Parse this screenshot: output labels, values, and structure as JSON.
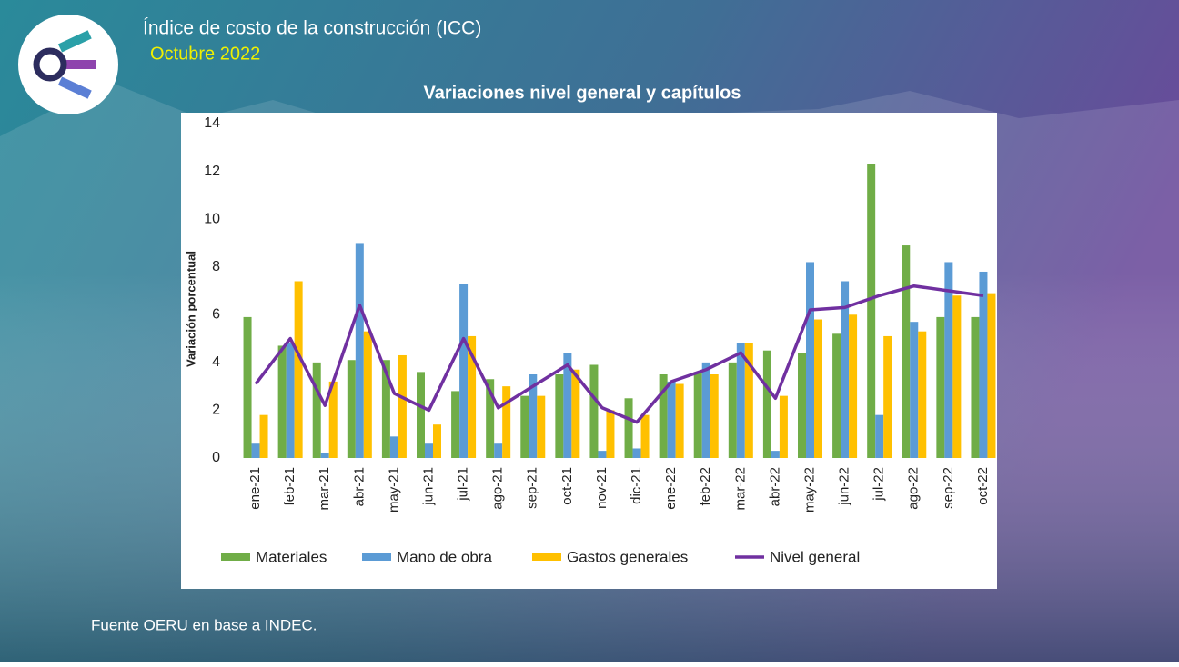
{
  "header": {
    "title": "Índice de costo de la construcción (ICC)",
    "subtitle": "Octubre 2022",
    "source": "Fuente OERU en base a INDEC."
  },
  "chart_data": {
    "type": "bar",
    "title": "Variaciones nivel general y capítulos",
    "y_label": "Variación porcentual",
    "categories": [
      "ene-21",
      "feb-21",
      "mar-21",
      "abr-21",
      "may-21",
      "jun-21",
      "jul-21",
      "ago-21",
      "sep-21",
      "oct-21",
      "nov-21",
      "dic-21",
      "ene-22",
      "feb-22",
      "mar-22",
      "abr-22",
      "may-22",
      "jun-22",
      "jul-22",
      "ago-22",
      "sep-22",
      "oct-22"
    ],
    "series": [
      {
        "name": "Materiales",
        "type": "bar",
        "color": "#70ad47",
        "values": [
          5.9,
          4.7,
          4.0,
          4.1,
          4.1,
          3.6,
          2.8,
          3.3,
          2.6,
          3.5,
          3.9,
          2.5,
          3.5,
          3.6,
          4.0,
          4.5,
          4.4,
          5.2,
          12.3,
          8.9,
          5.9,
          5.9
        ]
      },
      {
        "name": "Mano de obra",
        "type": "bar",
        "color": "#5b9bd5",
        "values": [
          0.6,
          4.8,
          0.2,
          9.0,
          0.9,
          0.6,
          7.3,
          0.6,
          3.5,
          4.4,
          0.3,
          0.4,
          3.2,
          4.0,
          4.8,
          0.3,
          8.2,
          7.4,
          1.8,
          5.7,
          8.2,
          7.8
        ]
      },
      {
        "name": "Gastos generales",
        "type": "bar",
        "color": "#ffc000",
        "values": [
          1.8,
          7.4,
          3.2,
          5.3,
          4.3,
          1.4,
          5.1,
          3.0,
          2.6,
          3.7,
          2.0,
          1.8,
          3.1,
          3.5,
          4.8,
          2.6,
          5.8,
          6.0,
          5.1,
          5.3,
          6.8,
          6.9
        ]
      },
      {
        "name": "Nivel general",
        "type": "line",
        "color": "#7030a0",
        "values": [
          3.1,
          5.0,
          2.2,
          6.4,
          2.7,
          2.0,
          5.0,
          2.1,
          3.0,
          3.9,
          2.1,
          1.5,
          3.2,
          3.7,
          4.4,
          2.5,
          6.2,
          6.3,
          6.8,
          7.2,
          7.0,
          6.8
        ]
      }
    ],
    "ylim": [
      0,
      14
    ],
    "yticks": [
      0,
      2,
      4,
      6,
      8,
      10,
      12,
      14
    ],
    "grid": false,
    "legend": "bottom"
  }
}
